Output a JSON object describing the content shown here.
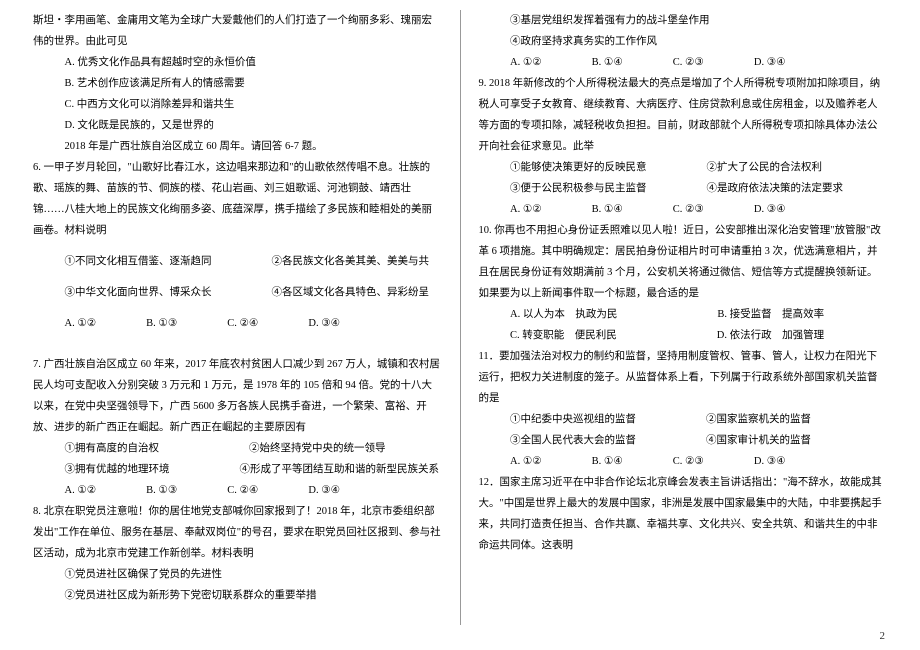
{
  "page_number": "2",
  "left": {
    "intro": "斯坦・李用画笔、金庸用文笔为全球广大爱戴他们的人们打造了一个绚丽多彩、瑰丽宏伟的世界。由此可见",
    "optA": "A. 优秀文化作品具有超越时空的永恒价值",
    "optB": "B. 艺术创作应该满足所有人的情感需要",
    "optC": "C. 中西方文化可以消除差异和谐共生",
    "optD": "D. 文化既是民族的，又是世界的",
    "trans": "2018 年是广西壮族自治区成立 60 周年。请回答 6-7 题。",
    "q6": "6. 一甲子岁月轮回，\"山歌好比春江水，这边唱来那边和\"的山歌依然传唱不息。壮族的歌、瑶族的舞、苗族的节、侗族的楼、花山岩画、刘三姐歌谣、河池铜鼓、靖西壮锦……八桂大地上的民族文化绚丽多姿、底蕴深厚，携手描绘了多民族和睦相处的美丽画卷。材料说明",
    "q6o1": "①不同文化相互借鉴、逐渐趋同",
    "q6o2": "②各民族文化各美其美、美美与共",
    "q6o3": "③中华文化面向世界、博采众长",
    "q6o4": "④各区域文化各具特色、异彩纷呈",
    "q6A": "A. ①②",
    "q6B": "B. ①③",
    "q6C": "C. ②④",
    "q6D": "D. ③④",
    "q7": "7. 广西壮族自治区成立 60 年来，2017 年底农村贫困人口减少到 267 万人，城镇和农村居民人均可支配收入分别突破 3 万元和 1 万元，是 1978 年的 105 倍和 94 倍。党的十八大以来，在党中央坚强领导下，广西 5600 多万各族人民携手奋进，一个繁荣、富裕、开放、进步的新广西正在崛起。新广西正在崛起的主要原因有",
    "q7o1": "①拥有高度的自治权",
    "q7o2": "②始终坚持党中央的统一领导",
    "q7o3": "③拥有优越的地理环境",
    "q7o4": "④形成了平等团结互助和谐的新型民族关系",
    "q7A": "A. ①②",
    "q7B": "B. ①③",
    "q7C": "C. ②④",
    "q7D": "D. ③④",
    "q8": "8. 北京在职党员注意啦！你的居住地党支部喊你回家报到了！2018 年，北京市委组织部发出\"工作在单位、服务在基层、奉献双岗位\"的号召，要求在职党员回社区报到、参与社区活动，成为北京市党建工作新创举。材料表明",
    "q8o1": "①党员进社区确保了党员的先进性",
    "q8o2": "②党员进社区成为新形势下党密切联系群众的重要举措"
  },
  "right": {
    "q8o3": "③基层党组织发挥着强有力的战斗堡垒作用",
    "q8o4": "④政府坚持求真务实的工作作风",
    "q8A": "A. ①②",
    "q8B": "B. ①④",
    "q8C": "C. ②③",
    "q8D": "D. ③④",
    "q9": "9. 2018 年新修改的个人所得税法最大的亮点是增加了个人所得税专项附加扣除项目，纳税人可享受子女教育、继续教育、大病医疗、住房贷款利息或住房租金，以及赡养老人等方面的专项扣除，减轻税收负担担。目前，财政部就个人所得税专项扣除具体办法公开向社会征求意见。此举",
    "q9o1": "①能够使决策更好的反映民意",
    "q9o2": "②扩大了公民的合法权利",
    "q9o3": "③便于公民积极参与民主监督",
    "q9o4": "④是政府依法决策的法定要求",
    "q9A": "A. ①②",
    "q9B": "B. ①④",
    "q9C": "C. ②③",
    "q9D": "D. ③④",
    "q10": "10. 你再也不用担心身份证丢照难以见人啦！近日，公安部推出深化治安管理\"放管服\"改革 6 项措施。其中明确规定：居民拍身份证相片时可申请重拍 3 次，优选满意相片，并且在居民身份证有效期满前 3 个月，公安机关将通过微信、短信等方式提醒换领新证。如果要为以上新闻事件取一个标题，最合适的是",
    "q10A": "A. 以人为本　执政为民",
    "q10B": "B. 接受监督　提高效率",
    "q10C": "C. 转变职能　便民利民",
    "q10D": "D. 依法行政　加强管理",
    "q11": "11．要加强法治对权力的制约和监督，坚持用制度管权、管事、管人，让权力在阳光下运行，把权力关进制度的笼子。从监督体系上看，下列属于行政系统外部国家机关监督的是",
    "q11o1": "①中纪委中央巡视组的监督",
    "q11o2": "②国家监察机关的监督",
    "q11o3": "③全国人民代表大会的监督",
    "q11o4": "④国家审计机关的监督",
    "q11A": "A. ①②",
    "q11B": "B. ①④",
    "q11C": "C. ②③",
    "q11D": "D. ③④",
    "q12": "12．国家主席习近平在中非合作论坛北京峰会发表主旨讲话指出：\"海不辞水，故能成其大。\"中国是世界上最大的发展中国家，非洲是发展中国家最集中的大陆，中非要携起手来，共同打造责任担当、合作共赢、幸福共享、文化共兴、安全共筑、和谐共生的中非命运共同体。这表明"
  }
}
